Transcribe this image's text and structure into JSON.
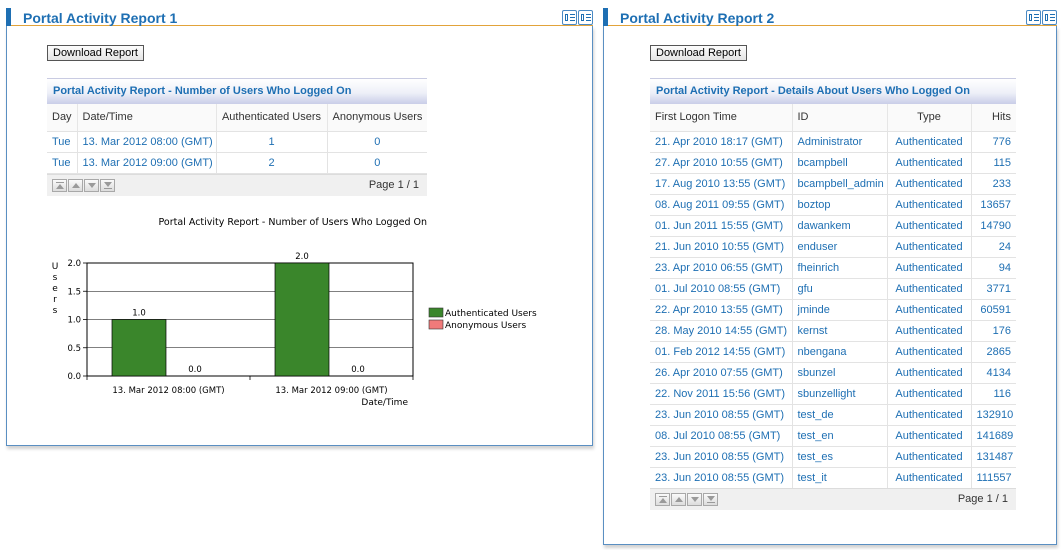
{
  "portlet1": {
    "title": "Portal Activity Report 1",
    "download_label": "Download Report",
    "table_title": "Portal Activity Report - Number of Users Who Logged On",
    "columns": [
      "Day",
      "Date/Time",
      "Authenticated Users",
      "Anonymous Users"
    ],
    "rows": [
      [
        "Tue",
        "13. Mar 2012 08:00 (GMT)",
        "1",
        "0"
      ],
      [
        "Tue",
        "13. Mar 2012 09:00 (GMT)",
        "2",
        "0"
      ]
    ],
    "page_label": "Page 1 / 1"
  },
  "portlet2": {
    "title": "Portal Activity Report 2",
    "download_label": "Download Report",
    "table_title": "Portal Activity Report - Details About Users Who Logged On",
    "columns": [
      "First Logon Time",
      "ID",
      "Type",
      "Hits"
    ],
    "rows": [
      [
        "21. Apr 2010 18:17 (GMT)",
        "Administrator",
        "Authenticated",
        "776"
      ],
      [
        "27. Apr 2010 10:55 (GMT)",
        "bcampbell",
        "Authenticated",
        "115"
      ],
      [
        "17. Aug 2010 13:55 (GMT)",
        "bcampbell_admin",
        "Authenticated",
        "233"
      ],
      [
        "08. Aug 2011 09:55 (GMT)",
        "boztop",
        "Authenticated",
        "13657"
      ],
      [
        "01. Jun 2011 15:55 (GMT)",
        "dawankem",
        "Authenticated",
        "14790"
      ],
      [
        "21. Jun 2010 10:55 (GMT)",
        "enduser",
        "Authenticated",
        "24"
      ],
      [
        "23. Apr 2010 06:55 (GMT)",
        "fheinrich",
        "Authenticated",
        "94"
      ],
      [
        "01. Jul 2010 08:55 (GMT)",
        "gfu",
        "Authenticated",
        "3771"
      ],
      [
        "22. Apr 2010 13:55 (GMT)",
        "jminde",
        "Authenticated",
        "60591"
      ],
      [
        "28. May 2010 14:55 (GMT)",
        "kernst",
        "Authenticated",
        "176"
      ],
      [
        "01. Feb 2012 14:55 (GMT)",
        "nbengana",
        "Authenticated",
        "2865"
      ],
      [
        "26. Apr 2010 07:55 (GMT)",
        "sbunzel",
        "Authenticated",
        "4134"
      ],
      [
        "22. Nov 2011 15:56 (GMT)",
        "sbunzellight",
        "Authenticated",
        "116"
      ],
      [
        "23. Jun 2010 08:55 (GMT)",
        "test_de",
        "Authenticated",
        "132910"
      ],
      [
        "08. Jul 2010 08:55 (GMT)",
        "test_en",
        "Authenticated",
        "141689"
      ],
      [
        "23. Jun 2010 08:55 (GMT)",
        "test_es",
        "Authenticated",
        "131487"
      ],
      [
        "23. Jun 2010 08:55 (GMT)",
        "test_it",
        "Authenticated",
        "111557"
      ]
    ],
    "page_label": "Page 1 / 1"
  },
  "colors": {
    "title_blue": "#1e6fb3",
    "header_orange": "#e2a33a",
    "authenticated": "#3a862b",
    "anonymous": "#f07a7a"
  },
  "icons": [
    "expand-icon",
    "maximize-icon",
    "first-page-icon",
    "previous-page-icon",
    "next-page-icon",
    "last-page-icon"
  ],
  "chart_data": {
    "type": "bar",
    "title": "Portal Activity Report - Number of Users Who Logged On",
    "xlabel": "Date/Time",
    "ylabel": "Users",
    "categories": [
      "13. Mar 2012 08:00 (GMT)",
      "13. Mar 2012 09:00 (GMT)"
    ],
    "series": [
      {
        "name": "Authenticated Users",
        "values": [
          1.0,
          2.0
        ],
        "color": "#3a862b"
      },
      {
        "name": "Anonymous Users",
        "values": [
          0.0,
          0.0
        ],
        "color": "#f07a7a"
      }
    ],
    "ylim": [
      0,
      2.0
    ],
    "yticks": [
      "0.0",
      "0.5",
      "1.0",
      "1.5",
      "2.0"
    ],
    "grid": true,
    "legend": "right"
  }
}
